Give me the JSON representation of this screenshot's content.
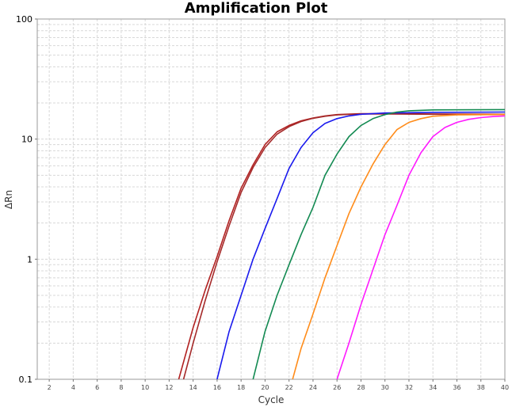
{
  "chart_data": {
    "type": "line",
    "title": "Amplification Plot",
    "xlabel": "Cycle",
    "ylabel": "ΔRn",
    "xlim": [
      1,
      40
    ],
    "ylim": [
      0.1,
      100
    ],
    "yscale": "log",
    "x_ticks": [
      2,
      4,
      6,
      8,
      10,
      12,
      14,
      16,
      18,
      20,
      22,
      24,
      26,
      28,
      30,
      32,
      34,
      36,
      38,
      40
    ],
    "y_ticks": [
      0.1,
      1,
      10,
      100
    ],
    "y_tick_labels": [
      "0.1",
      "1",
      "10",
      "100"
    ],
    "grid": true,
    "legend": "none",
    "series": [
      {
        "name": "red-1",
        "color": "#b22222",
        "x": [
          12.8,
          14,
          15,
          16,
          17,
          18,
          19,
          20,
          21,
          22,
          23,
          24,
          25,
          26,
          28,
          30,
          34,
          40
        ],
        "values": [
          0.1,
          0.27,
          0.55,
          1.05,
          2.1,
          3.9,
          6.1,
          9.0,
          11.5,
          13.0,
          14.2,
          15.0,
          15.6,
          16.0,
          16.3,
          16.3,
          16.2,
          16.1
        ]
      },
      {
        "name": "red-2",
        "color": "#a52a2a",
        "x": [
          13.2,
          14,
          15,
          16,
          17,
          18,
          19,
          20,
          21,
          22,
          23,
          24,
          25,
          26,
          28,
          30,
          34,
          40
        ],
        "values": [
          0.1,
          0.2,
          0.45,
          0.95,
          1.9,
          3.6,
          5.8,
          8.5,
          11.0,
          12.7,
          14.0,
          14.9,
          15.5,
          15.9,
          16.2,
          16.2,
          16.1,
          16.0
        ]
      },
      {
        "name": "blue",
        "color": "#1a1aee",
        "x": [
          16,
          17,
          18,
          19,
          20,
          21,
          22,
          23,
          24,
          25,
          26,
          27,
          28,
          30,
          34,
          40
        ],
        "values": [
          0.1,
          0.25,
          0.5,
          1.0,
          1.8,
          3.2,
          5.7,
          8.5,
          11.3,
          13.5,
          14.8,
          15.6,
          16.1,
          16.5,
          16.7,
          16.8
        ]
      },
      {
        "name": "green",
        "color": "#138a52",
        "x": [
          19,
          20,
          21,
          22,
          23,
          24,
          25,
          26,
          27,
          28,
          29,
          30,
          31,
          32,
          34,
          40
        ],
        "values": [
          0.1,
          0.25,
          0.5,
          0.9,
          1.6,
          2.7,
          5.0,
          7.5,
          10.5,
          13.0,
          14.8,
          16.0,
          16.8,
          17.2,
          17.5,
          17.6
        ]
      },
      {
        "name": "orange",
        "color": "#ff8c1a",
        "x": [
          22.3,
          23,
          24,
          25,
          26,
          27,
          28,
          29,
          30,
          31,
          32,
          33,
          34,
          36,
          40
        ],
        "values": [
          0.1,
          0.18,
          0.35,
          0.7,
          1.3,
          2.4,
          4.0,
          6.2,
          9.0,
          12.0,
          13.8,
          14.8,
          15.5,
          15.9,
          16.0
        ]
      },
      {
        "name": "magenta",
        "color": "#ff1aff",
        "x": [
          26,
          27,
          28,
          29,
          30,
          31,
          32,
          33,
          34,
          35,
          36,
          37,
          38,
          39,
          40
        ],
        "values": [
          0.1,
          0.2,
          0.42,
          0.82,
          1.6,
          2.8,
          5.0,
          7.7,
          10.5,
          12.5,
          13.8,
          14.6,
          15.1,
          15.4,
          15.6
        ]
      }
    ]
  }
}
